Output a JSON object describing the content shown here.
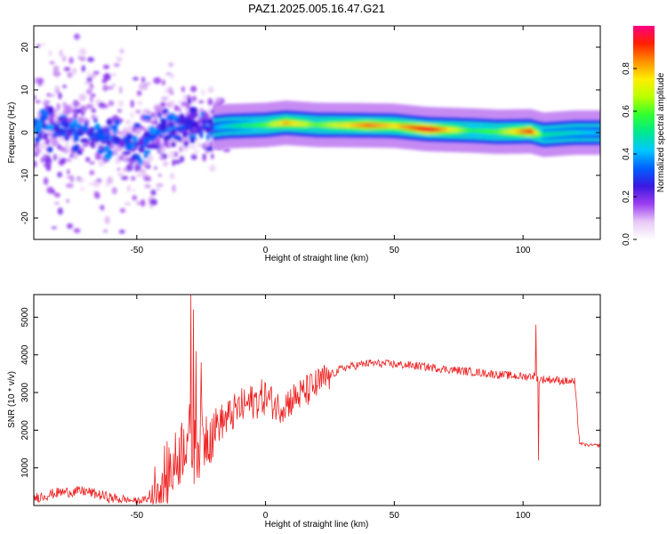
{
  "title": "PAZ1.2025.005.16.47.G21",
  "chart_data": [
    {
      "type": "heatmap",
      "xlabel": "Height of straight line (km)",
      "ylabel": "Frequency (Hz)",
      "xlim": [
        -90,
        130
      ],
      "ylim": [
        -25,
        25
      ],
      "xticks": [
        -50,
        0,
        50,
        100
      ],
      "yticks": [
        -20,
        -10,
        0,
        10,
        20
      ],
      "colorbar": {
        "label": "Normalized spectral amplitude",
        "range": [
          0,
          1
        ],
        "ticks": [
          0.0,
          0.2,
          0.4,
          0.6,
          0.8
        ],
        "colormap": [
          "#ffffff",
          "#e8c8f6",
          "#9b3df0",
          "#3a18e0",
          "#0060ff",
          "#00c8ff",
          "#00e890",
          "#30ff30",
          "#b8ff00",
          "#ffee00",
          "#ff9000",
          "#ff2000",
          "#ff0080"
        ]
      },
      "ridge": [
        {
          "x": -88,
          "f": 2.0,
          "amp": 0.25
        },
        {
          "x": -80,
          "f": 0.5,
          "amp": 0.3
        },
        {
          "x": -70,
          "f": 0.0,
          "amp": 0.35
        },
        {
          "x": -60,
          "f": -1.5,
          "amp": 0.3
        },
        {
          "x": -50,
          "f": -3.5,
          "amp": 0.3
        },
        {
          "x": -40,
          "f": 1.0,
          "amp": 0.35
        },
        {
          "x": -30,
          "f": 2.5,
          "amp": 0.3
        },
        {
          "x": -22,
          "f": 1.0,
          "amp": 0.35
        },
        {
          "x": -15,
          "f": 1.5,
          "amp": 0.45
        },
        {
          "x": 0,
          "f": 1.8,
          "amp": 0.6
        },
        {
          "x": 8,
          "f": 2.3,
          "amp": 0.8
        },
        {
          "x": 20,
          "f": 1.8,
          "amp": 0.6
        },
        {
          "x": 40,
          "f": 1.7,
          "amp": 0.85
        },
        {
          "x": 50,
          "f": 1.6,
          "amp": 0.75
        },
        {
          "x": 63,
          "f": 0.8,
          "amp": 0.95
        },
        {
          "x": 80,
          "f": 0.5,
          "amp": 0.55
        },
        {
          "x": 90,
          "f": 0.2,
          "amp": 0.6
        },
        {
          "x": 103,
          "f": 0.3,
          "amp": 0.9
        },
        {
          "x": 108,
          "f": -0.5,
          "amp": 0.5
        },
        {
          "x": 120,
          "f": 0.0,
          "amp": 0.45
        },
        {
          "x": 130,
          "f": 0.0,
          "amp": 0.4
        }
      ]
    },
    {
      "type": "line",
      "xlabel": "Height of straight line (km)",
      "ylabel": "SNR (10 * v/v)",
      "xlim": [
        -90,
        130
      ],
      "ylim": [
        0,
        5600
      ],
      "xticks": [
        -50,
        0,
        50,
        100
      ],
      "yticks": [
        1000,
        2000,
        3000,
        4000,
        5000
      ],
      "series": [
        {
          "color": "#ee2222",
          "x": [
            -90,
            -80,
            -70,
            -60,
            -50,
            -45,
            -40,
            -35,
            -30,
            -28,
            -25,
            -20,
            -15,
            -10,
            -5,
            0,
            5,
            10,
            15,
            20,
            25,
            30,
            40,
            50,
            60,
            70,
            80,
            90,
            100,
            105,
            106,
            110,
            120,
            122,
            125,
            130
          ],
          "y": [
            200,
            350,
            380,
            200,
            120,
            180,
            700,
            1100,
            2000,
            1400,
            1700,
            2100,
            2300,
            2600,
            2750,
            2900,
            2600,
            2800,
            3000,
            3200,
            3450,
            3650,
            3780,
            3750,
            3700,
            3620,
            3550,
            3480,
            3420,
            3450,
            3350,
            3350,
            3280,
            1650,
            1600,
            1600
          ],
          "spikes": [
            {
              "x": -29,
              "y": 5600
            },
            {
              "x": -28,
              "y": 5200
            },
            {
              "x": -27,
              "y": 4100
            },
            {
              "x": -25,
              "y": 3800
            },
            {
              "x": 105,
              "y": 4800
            },
            {
              "x": 106,
              "y": 1200
            }
          ]
        }
      ]
    }
  ]
}
